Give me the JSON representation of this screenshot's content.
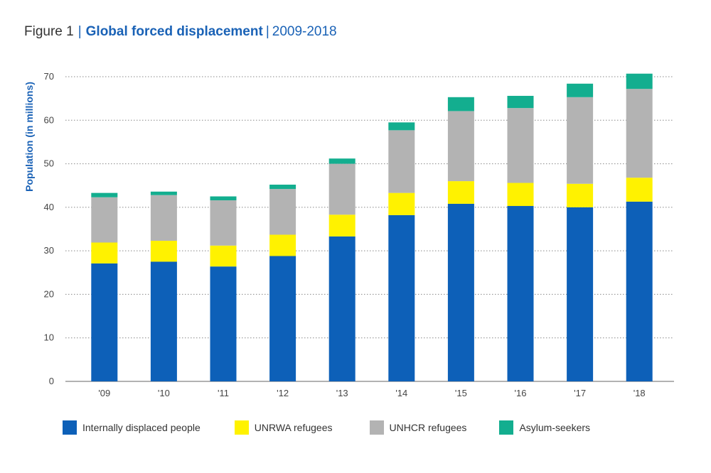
{
  "title": {
    "prefix": "Figure 1",
    "separator": "|",
    "main": "Global forced displacement",
    "separator2": "|",
    "range": "2009-2018"
  },
  "chart_data": {
    "type": "bar",
    "stacked": true,
    "categories": [
      "'09",
      "'10",
      "'11",
      "'12",
      "'13",
      "'14",
      "'15",
      "'16",
      "'17",
      "'18"
    ],
    "series": [
      {
        "name": "Internally displaced people",
        "color": "#0d60b8",
        "values": [
          27.1,
          27.5,
          26.4,
          28.8,
          33.3,
          38.2,
          40.8,
          40.3,
          40.0,
          41.3
        ]
      },
      {
        "name": "UNRWA refugees",
        "color": "#fff200",
        "values": [
          4.8,
          4.8,
          4.8,
          4.9,
          5.0,
          5.1,
          5.2,
          5.3,
          5.4,
          5.5
        ]
      },
      {
        "name": "UNHCR refugees",
        "color": "#b3b3b3",
        "values": [
          10.4,
          10.5,
          10.4,
          10.5,
          11.7,
          14.4,
          16.1,
          17.2,
          19.9,
          20.4
        ]
      },
      {
        "name": "Asylum-seekers",
        "color": "#13ae8f",
        "values": [
          1.0,
          0.8,
          0.9,
          1.0,
          1.2,
          1.8,
          3.2,
          2.8,
          3.1,
          3.5
        ]
      }
    ],
    "ylabel": "Population (in millions)",
    "xlabel": "",
    "ylim": [
      0,
      70
    ],
    "yticks": [
      0,
      10,
      20,
      30,
      40,
      50,
      60,
      70
    ],
    "grid": "horizontal dotted",
    "legend_position": "bottom"
  }
}
